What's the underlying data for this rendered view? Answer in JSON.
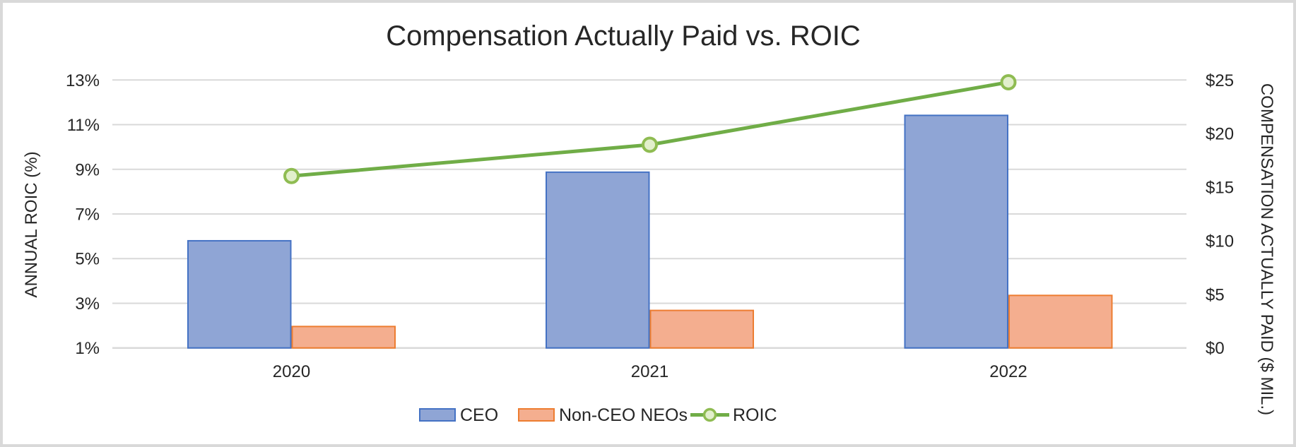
{
  "chart_data": {
    "type": "bar",
    "title": "Compensation Actually Paid vs. ROIC",
    "categories": [
      "2020",
      "2021",
      "2022"
    ],
    "xlabel": "",
    "ylabel": "ANNUAL ROIC (%)",
    "ylabel_right": "COMPENSATION ACTUALLY PAID ($ MIL.)",
    "ylim": [
      1,
      13
    ],
    "ylim_right": [
      0,
      25
    ],
    "yticks": [
      "1%",
      "3%",
      "5%",
      "7%",
      "9%",
      "11%",
      "13%"
    ],
    "yticks_right": [
      "$0",
      "$5",
      "$10",
      "$15",
      "$20",
      "$25"
    ],
    "grid": true,
    "legend_position": "bottom",
    "series": [
      {
        "name": "CEO",
        "type": "bar",
        "axis": "right",
        "unit": "$ MIL.",
        "color": "#8fa5d5",
        "border": "#4472c4",
        "values": [
          10.0,
          16.4,
          21.7
        ]
      },
      {
        "name": "Non-CEO NEOs",
        "type": "bar",
        "axis": "right",
        "unit": "$ MIL.",
        "color": "#f4ae8f",
        "border": "#ed7d31",
        "values": [
          2.0,
          3.5,
          4.9
        ]
      },
      {
        "name": "ROIC",
        "type": "line",
        "axis": "left",
        "unit": "%",
        "color": "#70ad47",
        "marker_fill": "#e2efcc",
        "values": [
          8.7,
          10.1,
          12.9
        ]
      }
    ]
  },
  "legend": {
    "items": [
      {
        "label": "CEO"
      },
      {
        "label": "Non-CEO NEOs"
      },
      {
        "label": "ROIC"
      }
    ]
  }
}
